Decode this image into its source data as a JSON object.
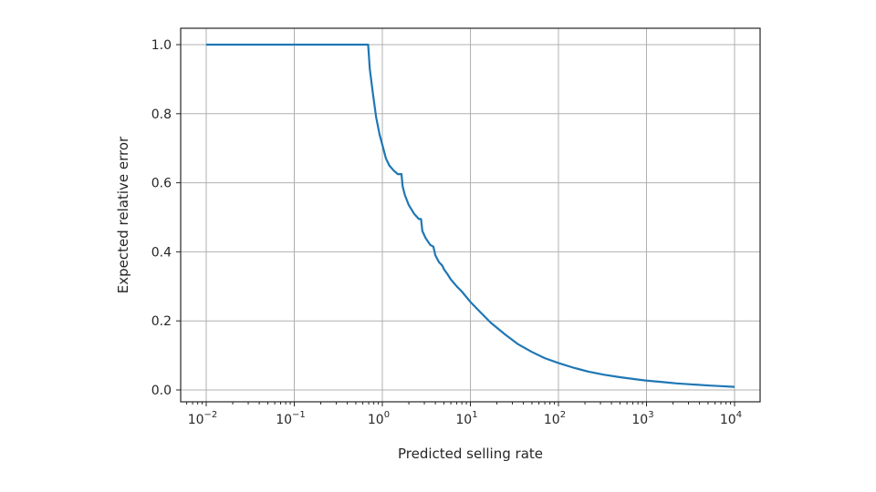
{
  "chart_data": {
    "type": "line",
    "title": "",
    "xlabel": "Predicted selling rate",
    "ylabel": "Expected relative error",
    "xscale": "log",
    "xlim": [
      0.01,
      10000
    ],
    "ylim": [
      0.0,
      1.0
    ],
    "grid": true,
    "x_ticks": [
      {
        "base": "10",
        "exp": "−2",
        "value": 0.01
      },
      {
        "base": "10",
        "exp": "−1",
        "value": 0.1
      },
      {
        "base": "10",
        "exp": "0",
        "value": 1
      },
      {
        "base": "10",
        "exp": "1",
        "value": 10
      },
      {
        "base": "10",
        "exp": "2",
        "value": 100
      },
      {
        "base": "10",
        "exp": "3",
        "value": 1000
      },
      {
        "base": "10",
        "exp": "4",
        "value": 10000
      }
    ],
    "y_ticks": [
      "0.0",
      "0.2",
      "0.4",
      "0.6",
      "0.8",
      "1.0"
    ],
    "series": [
      {
        "color": "#1f77b4",
        "x": [
          0.01,
          0.1,
          0.5,
          0.69,
          0.72,
          0.78,
          0.85,
          0.93,
          1.0,
          1.1,
          1.2,
          1.35,
          1.5,
          1.65,
          1.7,
          1.8,
          2.0,
          2.3,
          2.6,
          2.75,
          2.85,
          3.1,
          3.5,
          3.8,
          4.0,
          4.4,
          4.8,
          5.0,
          5.5,
          6.0,
          7.0,
          8.0,
          10.0,
          13.0,
          17.0,
          25.0,
          35.0,
          50.0,
          70.0,
          100.0,
          150.0,
          220.0,
          330.0,
          500.0,
          750.0,
          1000.0,
          1500.0,
          2200.0,
          3300.0,
          5000.0,
          7000.0,
          10000.0
        ],
        "y": [
          1.0,
          1.0,
          1.0,
          1.0,
          0.93,
          0.86,
          0.79,
          0.74,
          0.71,
          0.67,
          0.65,
          0.635,
          0.625,
          0.625,
          0.59,
          0.565,
          0.535,
          0.51,
          0.495,
          0.495,
          0.46,
          0.44,
          0.42,
          0.415,
          0.39,
          0.37,
          0.36,
          0.35,
          0.335,
          0.32,
          0.3,
          0.285,
          0.255,
          0.225,
          0.195,
          0.16,
          0.132,
          0.11,
          0.092,
          0.078,
          0.064,
          0.053,
          0.044,
          0.037,
          0.031,
          0.027,
          0.023,
          0.019,
          0.016,
          0.013,
          0.011,
          0.009
        ]
      }
    ]
  }
}
